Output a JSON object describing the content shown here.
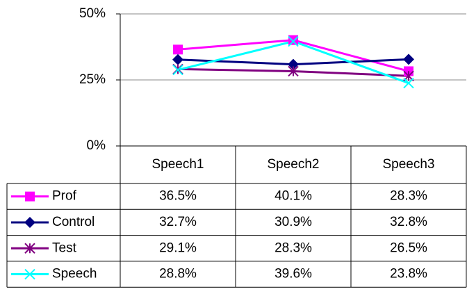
{
  "chart_data": {
    "type": "line",
    "categories": [
      "Speech1",
      "Speech2",
      "Speech3"
    ],
    "series": [
      {
        "name": "Prof",
        "color": "#ff00ff",
        "marker": "square",
        "values": [
          36.5,
          40.1,
          28.3
        ],
        "value_labels": [
          "36.5%",
          "40.1%",
          "28.3%"
        ]
      },
      {
        "name": "Control",
        "color": "#000080",
        "marker": "diamond",
        "values": [
          32.7,
          30.9,
          32.8
        ],
        "value_labels": [
          "32.7%",
          "30.9%",
          "32.8%"
        ]
      },
      {
        "name": "Test",
        "color": "#800080",
        "marker": "star",
        "values": [
          29.1,
          28.3,
          26.5
        ],
        "value_labels": [
          "29.1%",
          "28.3%",
          "26.5%"
        ]
      },
      {
        "name": "Speech",
        "color": "#00ffff",
        "marker": "x",
        "values": [
          28.8,
          39.6,
          23.8
        ],
        "value_labels": [
          "28.8%",
          "39.6%",
          "23.8%"
        ]
      }
    ],
    "ylim": [
      0,
      50
    ],
    "yticks": [
      {
        "value": 0,
        "label": "0%"
      },
      {
        "value": 25,
        "label": "25%"
      },
      {
        "value": 50,
        "label": "50%"
      }
    ],
    "grid": true
  }
}
